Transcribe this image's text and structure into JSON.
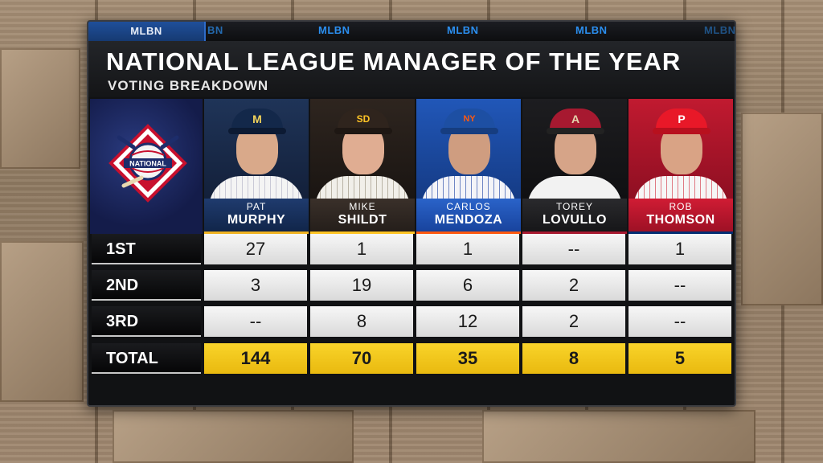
{
  "branding": {
    "network_logo": "MLBN",
    "strip_logos": [
      "BN",
      "MLBN",
      "MLBN",
      "MLBN",
      "MLBN"
    ]
  },
  "header": {
    "title": "NATIONAL LEAGUE MANAGER OF THE YEAR",
    "subtitle": "VOTING BREAKDOWN"
  },
  "league_logo": {
    "icon": "national-league-logo",
    "text": "NATIONAL"
  },
  "managers": [
    {
      "first": "PAT",
      "last": "MURPHY",
      "cap_color": "#13284a",
      "bg_color": "#1c2d4d",
      "accent": "#f0b323",
      "cap_logo": "M"
    },
    {
      "first": "MIKE",
      "last": "SHILDT",
      "cap_color": "#2f241d",
      "bg_color": "#2a221c",
      "accent": "#ffc425",
      "cap_logo": "SD"
    },
    {
      "first": "CARLOS",
      "last": "MENDOZA",
      "cap_color": "#1d4fa3",
      "bg_color": "#1c3f8f",
      "accent": "#ff5910",
      "cap_logo": "NY"
    },
    {
      "first": "TOREY",
      "last": "LOVULLO",
      "cap_color": "#a71930",
      "bg_color": "#1a1a1c",
      "accent": "#a71930",
      "cap_logo": "A"
    },
    {
      "first": "ROB",
      "last": "THOMSON",
      "cap_color": "#e81828",
      "bg_color": "#b3122a",
      "accent": "#002d72",
      "cap_logo": "P"
    }
  ],
  "table": {
    "rows": [
      {
        "label": "1ST",
        "values": [
          "27",
          "1",
          "1",
          "--",
          "1"
        ]
      },
      {
        "label": "2ND",
        "values": [
          "3",
          "19",
          "6",
          "2",
          "--"
        ]
      },
      {
        "label": "3RD",
        "values": [
          "--",
          "8",
          "12",
          "2",
          "--"
        ]
      },
      {
        "label": "TOTAL",
        "values": [
          "144",
          "70",
          "35",
          "8",
          "5"
        ]
      }
    ]
  },
  "colors": {
    "total_highlight": "#f5c518",
    "panel_background": "#111214"
  }
}
